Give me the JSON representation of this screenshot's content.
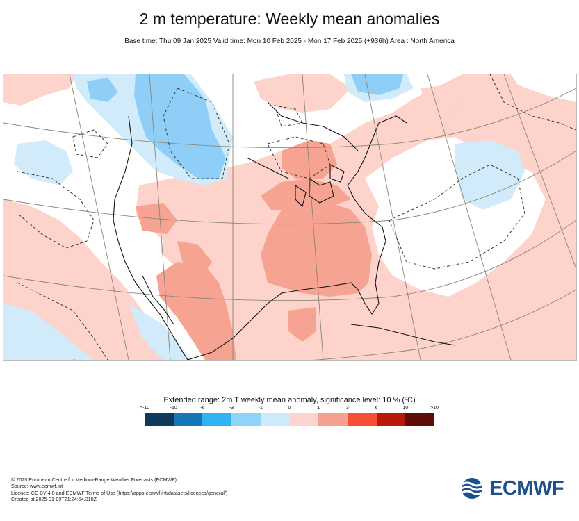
{
  "header": {
    "title": "2 m temperature: Weekly mean anomalies",
    "subtitle": "Base time: Thu 09 Jan 2025 Valid time: Mon 10 Feb 2025 - Mon 17 Feb 2025 (+936h) Area : North America"
  },
  "map": {
    "area": "North America",
    "colors": {
      "warm_light": "#fdd3cb",
      "warm_mid": "#f6a391",
      "cool_light": "#d1ebfb",
      "cool_mid": "#8fcff7",
      "coast": "#111111",
      "graticule": "#8a8676"
    }
  },
  "legend": {
    "title": "Extended range: 2m T weekly mean anomaly, significance level: 10 % (ºC)",
    "ticks": [
      "<-10",
      "-10",
      "-6",
      "-3",
      "-1",
      "0",
      "1",
      "3",
      "6",
      "10",
      ">10"
    ],
    "colors": [
      "#0f3a5c",
      "#1676b8",
      "#2fb3f2",
      "#8ed3f8",
      "#cdebfb",
      "#fdd4cd",
      "#f6a190",
      "#f74f34",
      "#b71a08",
      "#600d07"
    ]
  },
  "footer": {
    "line1": "© 2025 European Centre for Medium-Range Weather Forecasts (ECMWF)",
    "line2": "Source: www.ecmwf.int",
    "line3": "Licence: CC BY 4.0 and ECMWF Terms of Use (https://apps.ecmwf.int/datasets/licences/general/)",
    "line4": "Created at 2025-01-09T21:24:54.310Z"
  },
  "logo": {
    "text": "ECMWF",
    "color": "#1d4f8d"
  }
}
